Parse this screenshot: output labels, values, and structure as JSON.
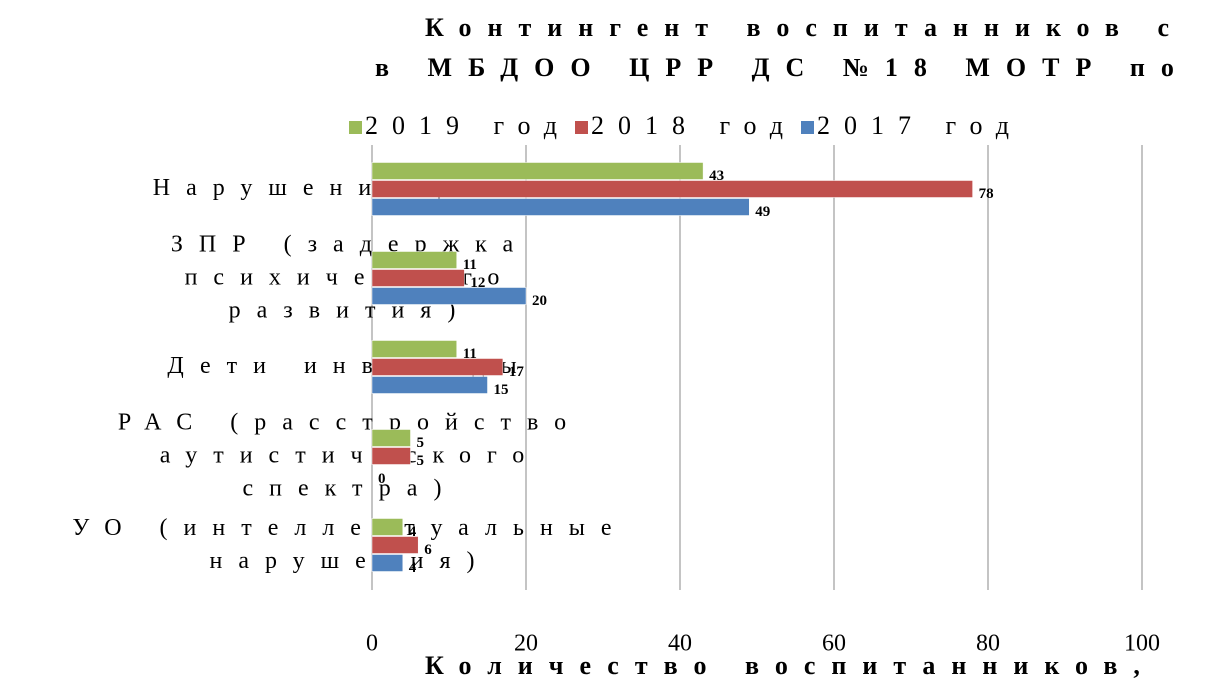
{
  "chart_data": {
    "type": "hbar",
    "title": [
      "Контингент воспитанников с",
      "в МБДОО ЦРР ДС №18 МОТР по"
    ],
    "x_label": "Количество воспитанников,",
    "categories": [
      "Нарушения речи",
      "ЗПР (задержка психического развития)",
      "Дети инвалиды",
      "РАС (расстройство аутистического спектра)",
      "УО (интеллектуальные нарушения)"
    ],
    "series": [
      {
        "name": "2019 год",
        "color": "#9bbb59",
        "values": [
          43,
          11,
          11,
          5,
          4
        ]
      },
      {
        "name": "2018 год",
        "color": "#c0504d",
        "values": [
          78,
          12,
          17,
          5,
          6
        ]
      },
      {
        "name": "2017 год",
        "color": "#4f81bd",
        "values": [
          49,
          20,
          15,
          0,
          4
        ]
      }
    ],
    "xlim": [
      0,
      100
    ],
    "xticks": [
      0,
      20,
      40,
      60,
      80,
      100
    ],
    "grid": true,
    "legend": "top"
  }
}
